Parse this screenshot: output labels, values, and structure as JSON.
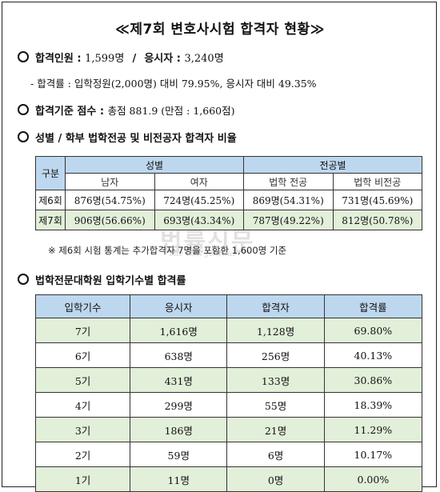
{
  "title": "≪제7회 변호사시험 합격자 현황≫",
  "passers": {
    "label": "합격인원",
    "value": "1,599명",
    "sep": "/",
    "applicants_label": "응시자",
    "applicants_value": "3,240명",
    "rate_line": "- 합격률 : 입학정원(2,000명) 대비 79.95%, 응시자 대비 49.35%"
  },
  "cutoff": {
    "label": "합격기준 점수",
    "value": "총점 881.9 (만점 : 1,660점)"
  },
  "gender_section": {
    "heading": "성별 / 학부 법학전공 및 비전공자 합격자 비율",
    "corner": "구분",
    "group_gender": "성별",
    "group_major": "전공별",
    "cols": [
      "남자",
      "여자",
      "법학 전공",
      "법학 비전공"
    ],
    "rows": [
      {
        "label": "제6회",
        "cells": [
          "876명(54.75%)",
          "724명(45.25%)",
          "869명(54.31%)",
          "731명(45.69%)"
        ]
      },
      {
        "label": "제7회",
        "cells": [
          "906명(56.66%)",
          "693명(43.34%)",
          "787명(49.22%)",
          "812명(50.78%)"
        ]
      }
    ],
    "note": "※ 제6회 시험 통계는 추가합격자 7명을 포함한 1,600명 기준"
  },
  "cohort_section": {
    "heading": "법학전문대학원 입학기수별 합격률",
    "headers": [
      "입학기수",
      "응시자",
      "합격자",
      "합격률"
    ],
    "rows": [
      [
        "7기",
        "1,616명",
        "1,128명",
        "69.80%"
      ],
      [
        "6기",
        "638명",
        "256명",
        "40.13%"
      ],
      [
        "5기",
        "431명",
        "133명",
        "30.86%"
      ],
      [
        "4기",
        "299명",
        "55명",
        "18.39%"
      ],
      [
        "3기",
        "186명",
        "21명",
        "11.29%"
      ],
      [
        "2기",
        "59명",
        "6명",
        "10.17%"
      ],
      [
        "1기",
        "11명",
        "0명",
        "0.00%"
      ]
    ]
  },
  "watermark": {
    "main": "법률신문",
    "sub": "The Law Journal"
  },
  "colors": {
    "header_blue": "#bdd7ee",
    "row_green": "#e2efd9"
  }
}
